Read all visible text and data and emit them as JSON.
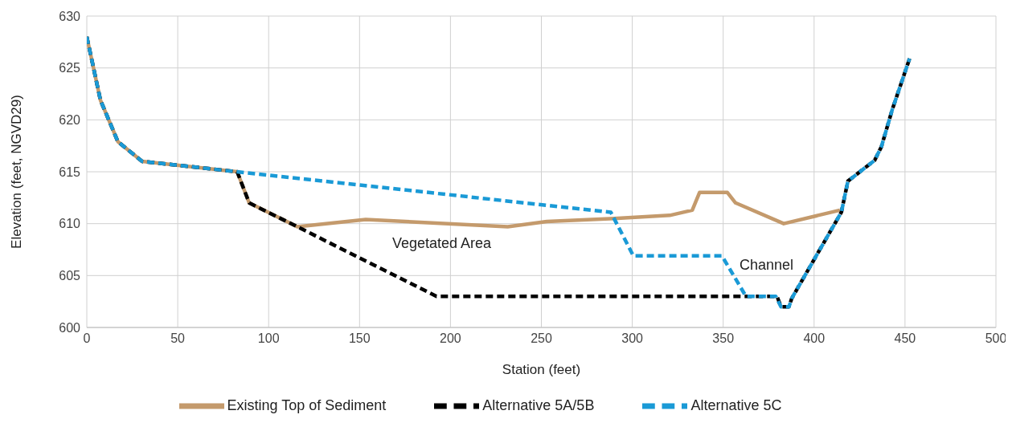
{
  "chart_data": {
    "type": "line",
    "xlabel": "Station (feet)",
    "ylabel": "Elevation (feet, NGVD29)",
    "xlim": [
      0,
      500
    ],
    "xticks": [
      0,
      50,
      100,
      150,
      200,
      250,
      300,
      350,
      400,
      450,
      500
    ],
    "ylim": [
      600,
      630
    ],
    "yticks": [
      600,
      605,
      610,
      615,
      620,
      625,
      630
    ],
    "grid": true,
    "legend": "bottom",
    "marker": "none",
    "series": [
      {
        "name": "Existing Top of Sediment",
        "color": "#c49a6c",
        "line_style": "solid",
        "x": [
          0,
          7.5,
          17.1,
          30.4,
          82.7,
          89.3,
          115.8,
          153.4,
          231.5,
          253,
          290,
          320.6,
          333,
          337,
          352.3,
          356.8,
          383.3,
          414.2
        ],
        "values": [
          628,
          621.9,
          617.9,
          616,
          615,
          612,
          609.7,
          610.4,
          609.7,
          610.2,
          610.5,
          610.8,
          611.3,
          613,
          613,
          612,
          610,
          611.3
        ]
      },
      {
        "name": "Alternative 5A/5B",
        "color": "#000000",
        "line_style": "dashed",
        "x": [
          0,
          7.5,
          17.1,
          30.4,
          82.7,
          89.3,
          115.8,
          192.3,
          379.6,
          381.8,
          386.2,
          387.7,
          415,
          418.6,
          433.3,
          437,
          443,
          452.5
        ],
        "values": [
          628,
          621.9,
          617.9,
          616,
          615,
          612,
          609.7,
          603,
          603,
          602,
          602,
          602.8,
          611.1,
          614.1,
          616.1,
          617.4,
          621,
          625.9
        ]
      },
      {
        "name": "Alternative 5C",
        "color": "#1a9ad6",
        "line_style": "dashed",
        "x": [
          0,
          7.5,
          17.1,
          30.4,
          82.7,
          288.2,
          300.6,
          349.3,
          362.5,
          378.9,
          381.8,
          386.2,
          387.7,
          415,
          418.6,
          433.3,
          437,
          443,
          452.5
        ],
        "values": [
          628,
          621.9,
          617.9,
          616,
          615,
          611.1,
          606.9,
          606.9,
          603,
          603,
          602,
          602,
          602.8,
          611.1,
          614.1,
          616.1,
          617.4,
          621,
          625.9
        ]
      }
    ],
    "annotations": [
      "Vegetated Area",
      "Channel"
    ]
  }
}
